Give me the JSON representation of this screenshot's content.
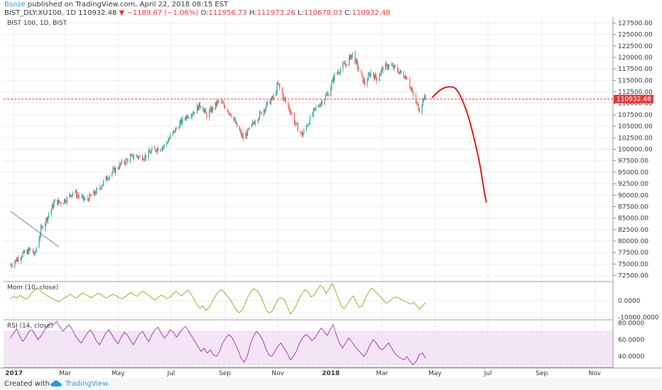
{
  "header": {
    "author": "Bsoze",
    "published": "published on TradingView.com, April 22, 2018 08:15 EST",
    "symbol": "BIST_DLY:XU100, 1D",
    "last": "110932.48",
    "change": "−1189.67 (−1.06%)",
    "open_label": "O:",
    "open": "111956.73",
    "high_label": "H:",
    "high": "111973.26",
    "low_label": "L:",
    "low": "110678.03",
    "close_label": "C:",
    "close": "110932.48"
  },
  "footer": {
    "created": "Created with",
    "brand": "TradingView"
  },
  "colors": {
    "up": "#26a69a",
    "down": "#ef5350",
    "momentum": "#9a9a1e",
    "rsi": "#9c27b0",
    "rsi_band": "#f3e5f5",
    "price_line": "#e03a3a",
    "projection": "#e00000",
    "grid": "#eeeeee"
  },
  "chart_data": [
    {
      "type": "candlestick",
      "title": "BIST 100, 1D, BIST",
      "x_ticks": [
        "2017",
        "Mar",
        "May",
        "Jul",
        "Sep",
        "Nov",
        "2018",
        "Mar",
        "May",
        "Jul",
        "Sep",
        "Nov"
      ],
      "y_ticks": [
        "72500.00",
        "75000.00",
        "77500.00",
        "80000.00",
        "82500.00",
        "85000.00",
        "87500.00",
        "90000.00",
        "92500.00",
        "95000.00",
        "97500.00",
        "100000.00",
        "102500.00",
        "105000.00",
        "107500.00",
        "110000.00",
        "112500.00",
        "115000.00",
        "117500.00",
        "120000.00",
        "122500.00",
        "125000.00",
        "127500.00"
      ],
      "ylim": [
        71200,
        128800
      ],
      "last_price": 110932.48,
      "last_price_label": "110932.48",
      "close_path": [
        [
          "2016-12-28",
          74800
        ],
        [
          "2017-01-10",
          77000
        ],
        [
          "2017-01-20",
          78100
        ],
        [
          "2017-01-25",
          77000
        ],
        [
          "2017-02-01",
          82500
        ],
        [
          "2017-02-10",
          85800
        ],
        [
          "2017-02-17",
          88600
        ],
        [
          "2017-02-24",
          88400
        ],
        [
          "2017-03-03",
          89300
        ],
        [
          "2017-03-10",
          90700
        ],
        [
          "2017-03-17",
          89700
        ],
        [
          "2017-03-24",
          88900
        ],
        [
          "2017-03-31",
          89800
        ],
        [
          "2017-04-07",
          91000
        ],
        [
          "2017-04-14",
          92800
        ],
        [
          "2017-04-21",
          94500
        ],
        [
          "2017-04-28",
          95600
        ],
        [
          "2017-05-05",
          96900
        ],
        [
          "2017-05-12",
          97700
        ],
        [
          "2017-05-19",
          98600
        ],
        [
          "2017-05-26",
          98300
        ],
        [
          "2017-06-02",
          98500
        ],
        [
          "2017-06-09",
          99700
        ],
        [
          "2017-06-16",
          100200
        ],
        [
          "2017-06-23",
          100700
        ],
        [
          "2017-06-30",
          102700
        ],
        [
          "2017-07-07",
          104500
        ],
        [
          "2017-07-14",
          106300
        ],
        [
          "2017-07-21",
          107600
        ],
        [
          "2017-07-28",
          108300
        ],
        [
          "2017-08-04",
          109800
        ],
        [
          "2017-08-11",
          107300
        ],
        [
          "2017-08-18",
          109000
        ],
        [
          "2017-08-25",
          110500
        ],
        [
          "2017-09-01",
          109300
        ],
        [
          "2017-09-08",
          107600
        ],
        [
          "2017-09-15",
          104900
        ],
        [
          "2017-09-22",
          102400
        ],
        [
          "2017-09-29",
          104200
        ],
        [
          "2017-10-06",
          106400
        ],
        [
          "2017-10-13",
          108000
        ],
        [
          "2017-10-20",
          109900
        ],
        [
          "2017-10-27",
          111300
        ],
        [
          "2017-11-01",
          114200
        ],
        [
          "2017-11-08",
          111000
        ],
        [
          "2017-11-15",
          108500
        ],
        [
          "2017-11-22",
          105100
        ],
        [
          "2017-11-29",
          103100
        ],
        [
          "2017-12-06",
          105800
        ],
        [
          "2017-12-13",
          108400
        ],
        [
          "2017-12-20",
          110100
        ],
        [
          "2017-12-29",
          112200
        ],
        [
          "2018-01-05",
          116000
        ],
        [
          "2018-01-12",
          117500
        ],
        [
          "2018-01-19",
          118800
        ],
        [
          "2018-01-26",
          120800
        ],
        [
          "2018-02-02",
          117400
        ],
        [
          "2018-02-09",
          114200
        ],
        [
          "2018-02-16",
          116700
        ],
        [
          "2018-02-23",
          115400
        ],
        [
          "2018-03-02",
          117700
        ],
        [
          "2018-03-09",
          118300
        ],
        [
          "2018-03-16",
          117600
        ],
        [
          "2018-03-23",
          116500
        ],
        [
          "2018-03-30",
          115700
        ],
        [
          "2018-04-06",
          111500
        ],
        [
          "2018-04-13",
          108600
        ],
        [
          "2018-04-18",
          111300
        ],
        [
          "2018-04-20",
          110932
        ]
      ],
      "trendline": [
        [
          "2016-12-28",
          86500
        ],
        [
          "2017-02-22",
          78700
        ]
      ],
      "projection": [
        [
          "2018-04-28",
          111300
        ],
        [
          "2018-05-08",
          113200
        ],
        [
          "2018-05-18",
          113700
        ],
        [
          "2018-05-25",
          113400
        ],
        [
          "2018-06-01",
          111000
        ],
        [
          "2018-06-08",
          107500
        ],
        [
          "2018-06-15",
          102500
        ],
        [
          "2018-06-22",
          96500
        ],
        [
          "2018-06-26",
          91500
        ],
        [
          "2018-06-29",
          88500
        ]
      ]
    },
    {
      "type": "line",
      "title": "Mom (10, close)",
      "y_ticks": [
        "0.0000",
        "-10000.0000"
      ],
      "ylim": [
        -11500,
        11000
      ],
      "series": [
        {
          "x_start": "2016-12-28",
          "x_end": "2018-04-20",
          "values": [
            1200,
            2500,
            1500,
            3000,
            2200,
            1000,
            1800,
            4500,
            6500,
            7800,
            6000,
            4200,
            3200,
            2000,
            1000,
            200,
            -800,
            500,
            1800,
            2600,
            3800,
            2400,
            1500,
            3200,
            4600,
            3800,
            2500,
            1800,
            3000,
            4200,
            3800,
            2400,
            1400,
            2800,
            3600,
            3100,
            1900,
            1000,
            2000,
            3600,
            4800,
            3600,
            2600,
            4400,
            5600,
            4200,
            3200,
            1600,
            400,
            2000,
            3200,
            2600,
            1200,
            2000,
            4000,
            5600,
            4200,
            2800,
            4800,
            6400,
            4000,
            1000,
            -2400,
            -4600,
            -3200,
            -6000,
            -4200,
            -1000,
            2400,
            4800,
            6600,
            5200,
            2800,
            800,
            -2400,
            -5400,
            -7200,
            -6000,
            -2000,
            2400,
            5600,
            7200,
            5800,
            3400,
            -800,
            -5200,
            -7600,
            -6400,
            -2800,
            800,
            1800,
            600,
            -3200,
            -8000,
            -6200,
            -3000,
            1200,
            4400,
            6600,
            5000,
            2200,
            3400,
            6600,
            9000,
            7600,
            4200,
            7200,
            10200,
            6200,
            1200,
            -3400,
            -4800,
            -2200,
            800,
            2800,
            -800,
            -4200,
            -3200,
            1600,
            4800,
            7400,
            6200,
            4200,
            2400,
            200,
            -1600,
            -400,
            1200,
            2200,
            1600,
            600,
            -200,
            -1200,
            -2000,
            -1000,
            -2800,
            -5000,
            -3200,
            -1200
          ]
        }
      ]
    },
    {
      "type": "line",
      "title": "RSI (14, close)",
      "y_ticks": [
        "80.0000",
        "60.0000",
        "40.0000"
      ],
      "ylim": [
        27,
        83
      ],
      "band": [
        30,
        70
      ],
      "series": [
        {
          "x_start": "2016-12-28",
          "x_end": "2018-04-20",
          "values": [
            62,
            68,
            73,
            64,
            58,
            63,
            70,
            72,
            66,
            60,
            65,
            71,
            76,
            80,
            78,
            82,
            76,
            70,
            74,
            78,
            73,
            65,
            60,
            56,
            62,
            68,
            72,
            66,
            58,
            54,
            61,
            68,
            72,
            66,
            60,
            55,
            63,
            69,
            66,
            59,
            54,
            61,
            67,
            70,
            63,
            58,
            66,
            72,
            75,
            68,
            62,
            66,
            72,
            69,
            63,
            68,
            73,
            76,
            70,
            64,
            58,
            52,
            46,
            50,
            44,
            48,
            42,
            40,
            46,
            56,
            62,
            66,
            63,
            56,
            48,
            38,
            33,
            40,
            54,
            64,
            70,
            66,
            60,
            50,
            42,
            40,
            46,
            52,
            56,
            50,
            44,
            36,
            40,
            46,
            56,
            62,
            66,
            64,
            59,
            62,
            68,
            74,
            70,
            65,
            72,
            78,
            66,
            56,
            50,
            56,
            62,
            58,
            52,
            48,
            44,
            40,
            46,
            54,
            60,
            56,
            50,
            48,
            52,
            56,
            50,
            44,
            40,
            38,
            36,
            40,
            34,
            30,
            34,
            42,
            44,
            38
          ]
        }
      ]
    }
  ]
}
